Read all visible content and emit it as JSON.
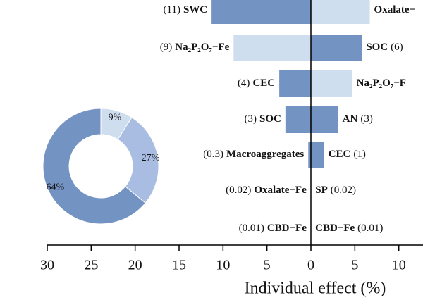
{
  "chart_data": [
    {
      "type": "diverging-bar",
      "xlabel": "Individual effect (%)",
      "left_xlim": [
        0,
        30
      ],
      "left_xticks": [
        30,
        25,
        20,
        15,
        10,
        5
      ],
      "right_xlim": [
        0,
        12.75
      ],
      "right_xticks": [
        0,
        5,
        10
      ],
      "left": {
        "labels": [
          "SWC",
          "Na₂P₂O₇−Fe",
          "CEC",
          "SOC",
          "Macroaggregates",
          "Oxalate−Fe",
          "CBD−Fe"
        ],
        "values": [
          11.3,
          8.8,
          3.6,
          2.9,
          0.3,
          0.02,
          0.01
        ],
        "value_labels": [
          "(11)",
          "(9)",
          "(4)",
          "(3)",
          "(0.3)",
          "(0.02)",
          "(0.01)"
        ],
        "colors": [
          "#7393c3",
          "#cfdeef",
          "#7393c3",
          "#7393c3",
          "#7393c3",
          "#7393c3",
          "#7393c3"
        ]
      },
      "right": {
        "labels": [
          "Oxalate−",
          "SOC",
          "Na₂P₂O₇−F",
          "AN",
          "CEC",
          "SP",
          "CBD−Fe"
        ],
        "values": [
          6.7,
          5.8,
          4.7,
          3.1,
          1.5,
          0.02,
          0.01
        ],
        "value_labels": [
          null,
          "(6)",
          null,
          "(3)",
          "(1)",
          "(0.02)",
          "(0.01)"
        ],
        "colors": [
          "#cfdeef",
          "#7393c3",
          "#cfdeef",
          "#7393c3",
          "#7393c3",
          "#7393c3",
          "#7393c3"
        ]
      }
    },
    {
      "type": "donut",
      "values": [
        9,
        27,
        64
      ],
      "value_labels": [
        "9%",
        "27%",
        "64%"
      ],
      "colors": [
        "#cfdeef",
        "#a9bde2",
        "#7393c3"
      ]
    }
  ]
}
